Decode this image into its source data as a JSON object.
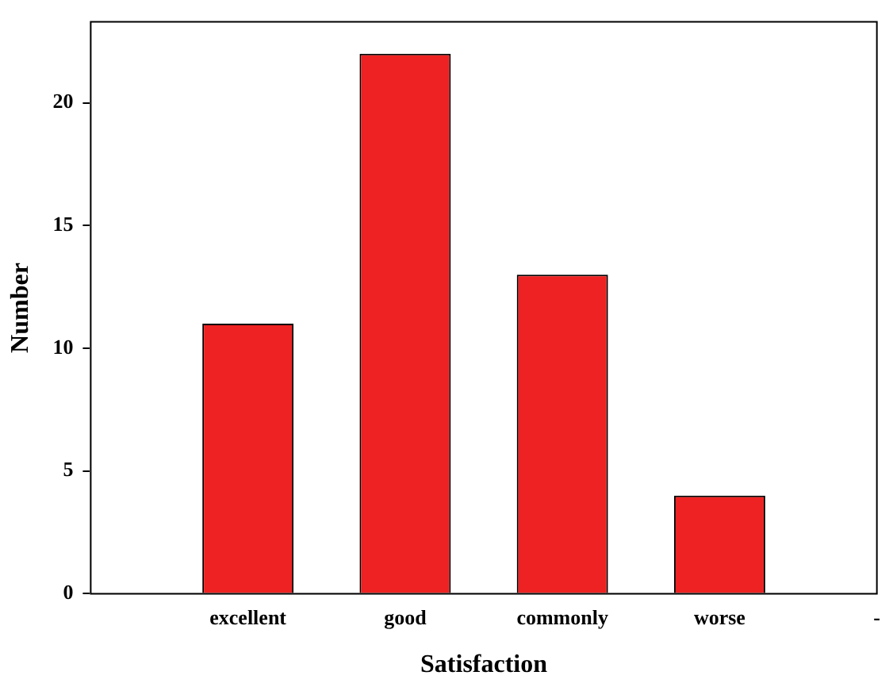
{
  "chart_data": {
    "type": "bar",
    "xlabel": "Satisfaction",
    "ylabel": "Number",
    "categories": [
      null,
      "excellent",
      "good",
      "commonly",
      "worse",
      "-"
    ],
    "values": [
      null,
      11,
      22,
      13,
      4,
      null
    ],
    "color": "#ee2222",
    "ylim": [
      0,
      23.3
    ],
    "yticks": [
      0,
      5,
      10,
      15,
      20
    ],
    "grid": false,
    "legend": false
  }
}
